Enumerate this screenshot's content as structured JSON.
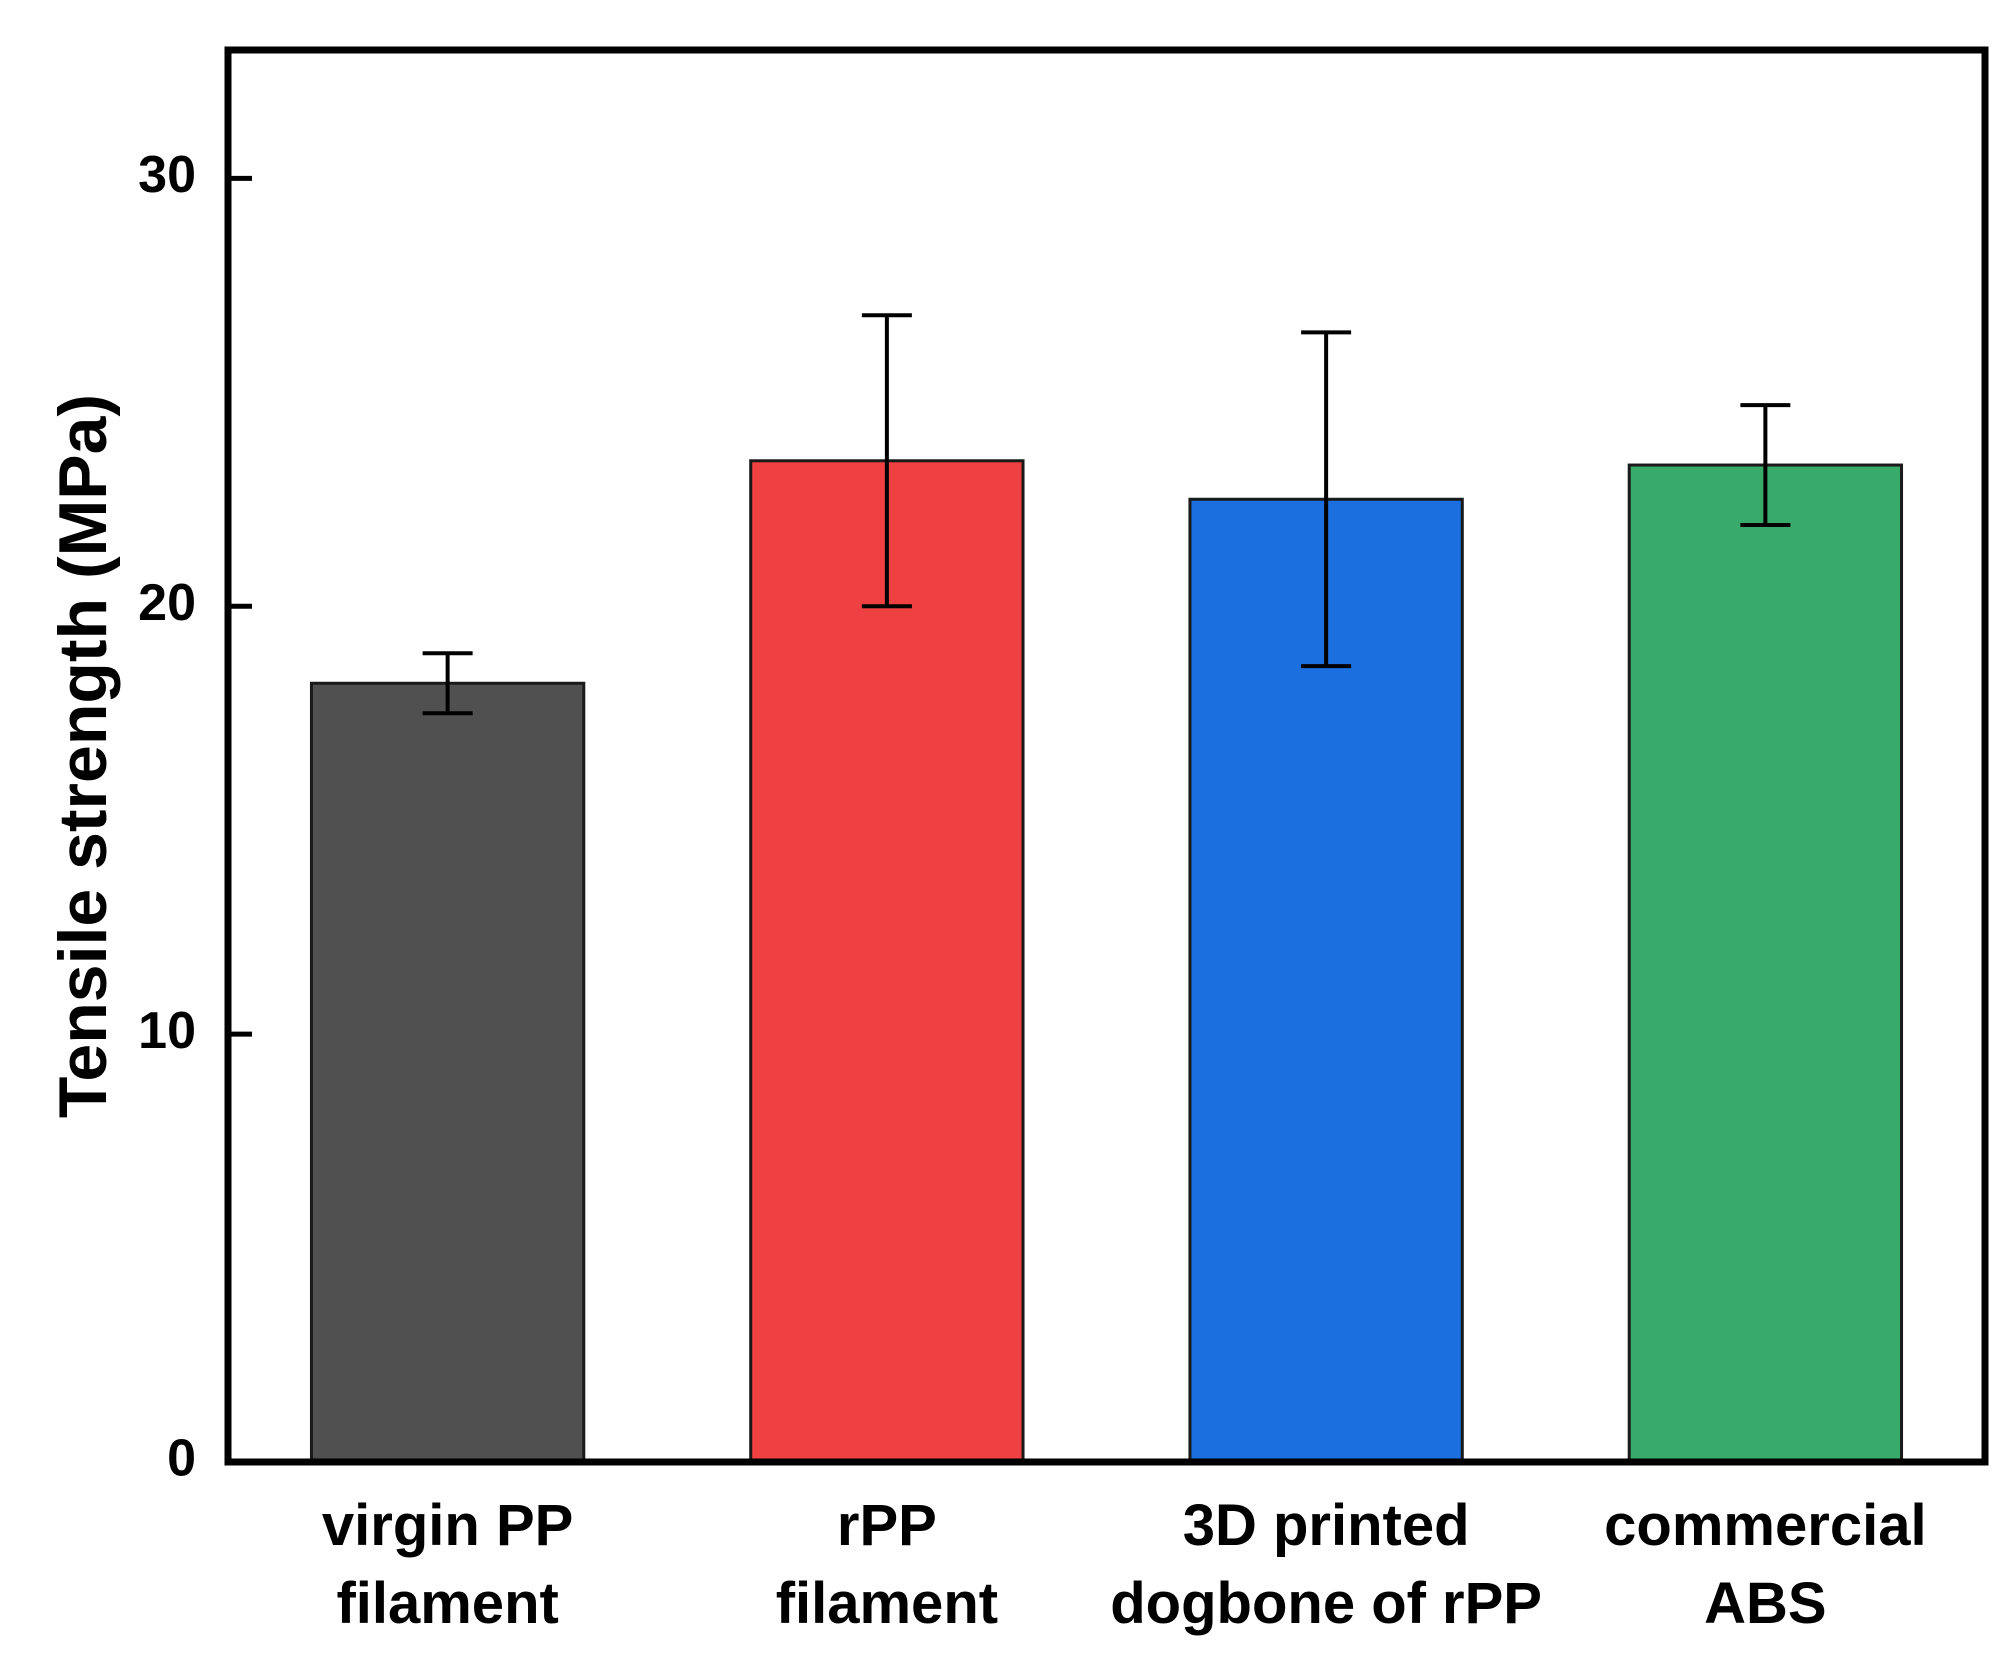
{
  "chart_data": {
    "type": "bar",
    "title": "",
    "xlabel": "",
    "ylabel": "Tensile strength (MPa)",
    "ylim": [
      0,
      33
    ],
    "yticks": [
      0,
      10,
      20,
      30
    ],
    "grid": false,
    "categories": [
      [
        "virgin PP",
        "filament"
      ],
      [
        "rPP",
        "filament"
      ],
      [
        "3D printed",
        "dogbone of rPP"
      ],
      [
        "commercial",
        "ABS"
      ]
    ],
    "values": [
      18.2,
      23.4,
      22.5,
      23.3
    ],
    "errors": [
      0.7,
      3.4,
      3.9,
      1.4
    ],
    "colors": [
      "#505050",
      "#ef4141",
      "#1b6fdf",
      "#38ab6b"
    ]
  }
}
